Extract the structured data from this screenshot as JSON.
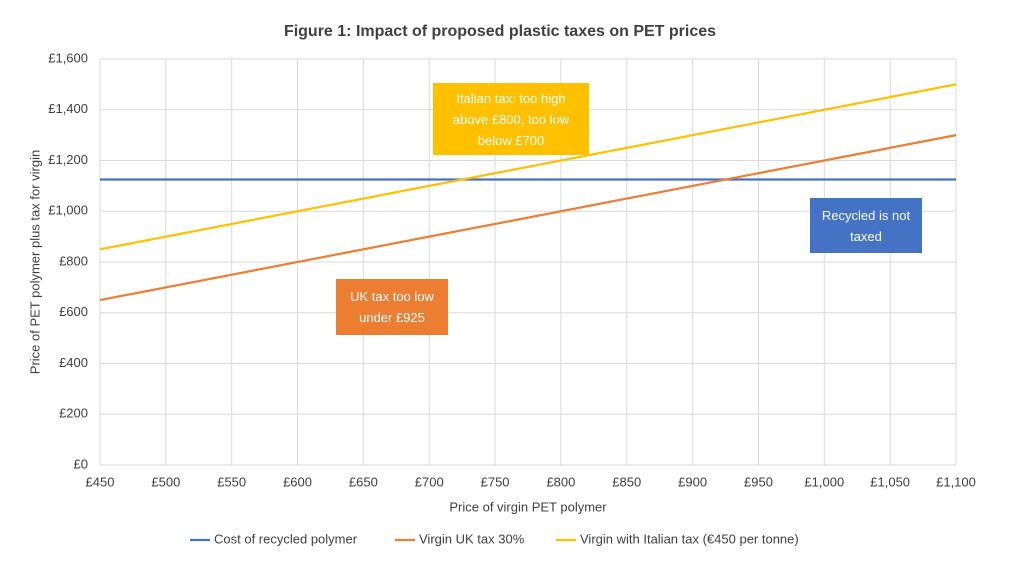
{
  "chart_data": {
    "type": "line",
    "title": "Figure 1: Impact of proposed plastic taxes on PET prices",
    "x_label": "Price of virgin PET polymer",
    "y_label": "Price of PET polymer plus tax for virgin",
    "x": [
      450,
      1100
    ],
    "series": [
      {
        "name": "Cost of recycled polymer",
        "color": "#4472c4",
        "values": [
          1125,
          1125
        ]
      },
      {
        "name": "Virgin UK tax 30%",
        "color": "#ed7d31",
        "values": [
          650,
          1300
        ]
      },
      {
        "name": "Virgin with Italian tax (€450 per tonne)",
        "color": "#ffc000",
        "values": [
          850,
          1500
        ]
      }
    ],
    "xlim": [
      450,
      1100
    ],
    "xticks": [
      {
        "value": 450,
        "label": "£450"
      },
      {
        "value": 500,
        "label": "£500"
      },
      {
        "value": 550,
        "label": "£550"
      },
      {
        "value": 600,
        "label": "£600"
      },
      {
        "value": 650,
        "label": "£650"
      },
      {
        "value": 700,
        "label": "£700"
      },
      {
        "value": 750,
        "label": "£750"
      },
      {
        "value": 800,
        "label": "£800"
      },
      {
        "value": 850,
        "label": "£850"
      },
      {
        "value": 900,
        "label": "£900"
      },
      {
        "value": 950,
        "label": "£950"
      },
      {
        "value": 1000,
        "label": "£1,000"
      },
      {
        "value": 1050,
        "label": "£1,050"
      },
      {
        "value": 1100,
        "label": "£1,100"
      }
    ],
    "ylim": [
      0,
      1600
    ],
    "yticks": [
      {
        "value": 0,
        "label": "£0"
      },
      {
        "value": 200,
        "label": "£200"
      },
      {
        "value": 400,
        "label": "£400"
      },
      {
        "value": 600,
        "label": "£600"
      },
      {
        "value": 800,
        "label": "£800"
      },
      {
        "value": 1000,
        "label": "£1,000"
      },
      {
        "value": 1200,
        "label": "£1,200"
      },
      {
        "value": 1400,
        "label": "£1,400"
      },
      {
        "value": 1600,
        "label": "£1,600"
      }
    ],
    "grid": true,
    "legend": "bottom",
    "annotations": [
      {
        "text": "Italian tax: too high above £800, too low below £700",
        "color": "#ffc000"
      },
      {
        "text": "Recycled is not taxed",
        "color": "#4472c4"
      },
      {
        "text": "UK tax too low under £925",
        "color": "#ed7d31"
      }
    ]
  }
}
